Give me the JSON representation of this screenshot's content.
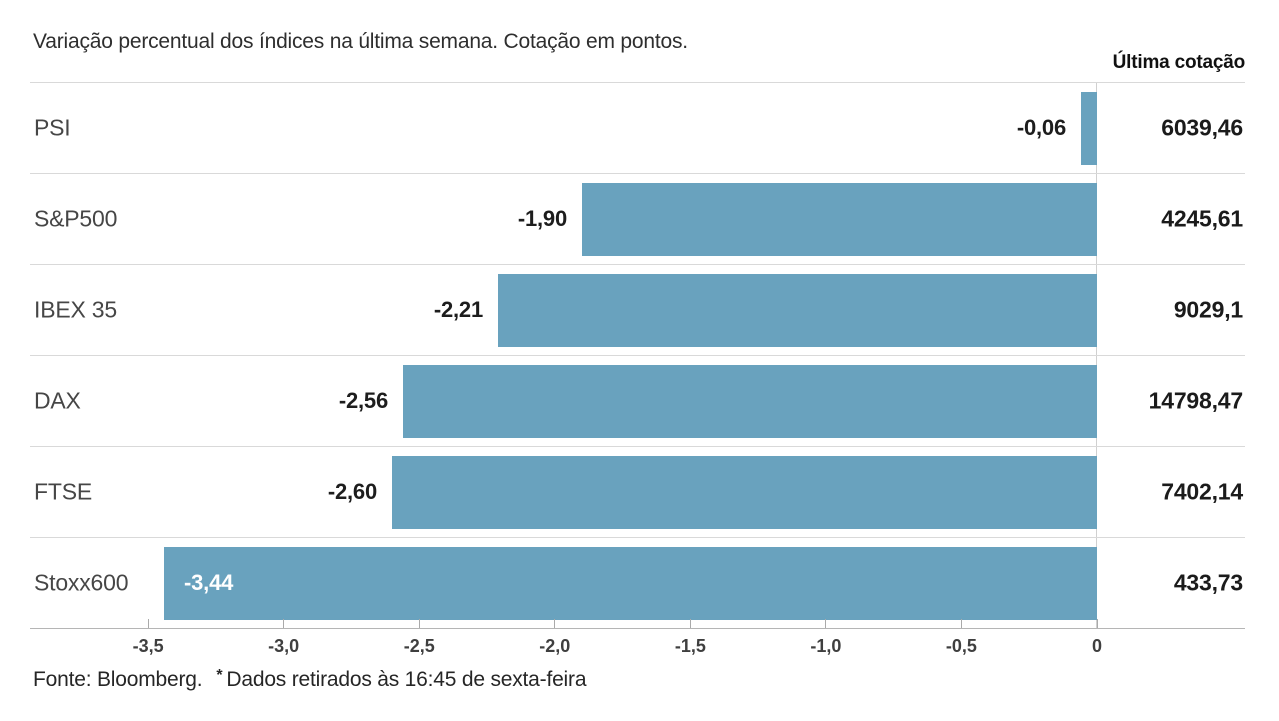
{
  "title": "Variação percentual dos índices na última semana. Cotação em pontos.",
  "last_quote_header": "Última cotação",
  "footer": {
    "source": "Fonte: Bloomberg.",
    "asterisk": "*",
    "note": "Dados retirados às 16:45 de sexta-feira"
  },
  "colors": {
    "bar": "#69a2be",
    "bar_label_inside": "#ffffff",
    "row_separator": "#d9d9d9",
    "axis_line": "#b5b5b5",
    "zero_gridline": "#d0d0d0",
    "value_text": "#1d1d1d",
    "label_text": "#464646"
  },
  "chart_data": {
    "type": "bar",
    "orientation": "horizontal",
    "title": "Variação percentual dos índices na última semana. Cotação em pontos.",
    "xlabel": "",
    "ylabel": "",
    "xlim": [
      -3.5,
      0
    ],
    "grid": false,
    "legend": "none",
    "value_column_header": "Última cotação",
    "x_ticks": [
      {
        "value": -3.5,
        "label": "-3,5"
      },
      {
        "value": -3.0,
        "label": "-3,0"
      },
      {
        "value": -2.5,
        "label": "-2,5"
      },
      {
        "value": -2.0,
        "label": "-2,0"
      },
      {
        "value": -1.5,
        "label": "-1,5"
      },
      {
        "value": -1.0,
        "label": "-1,0"
      },
      {
        "value": -0.5,
        "label": "-0,5"
      },
      {
        "value": 0,
        "label": "0"
      }
    ],
    "rows": [
      {
        "label": "PSI",
        "value": -0.06,
        "value_label": "-0,06",
        "quote": "6039,46",
        "label_inside": false
      },
      {
        "label": "S&P500",
        "value": -1.9,
        "value_label": "-1,90",
        "quote": "4245,61",
        "label_inside": false
      },
      {
        "label": "IBEX 35",
        "value": -2.21,
        "value_label": "-2,21",
        "quote": "9029,1",
        "label_inside": false
      },
      {
        "label": "DAX",
        "value": -2.56,
        "value_label": "-2,56",
        "quote": "14798,47",
        "label_inside": false
      },
      {
        "label": "FTSE",
        "value": -2.6,
        "value_label": "-2,60",
        "quote": "7402,14",
        "label_inside": false
      },
      {
        "label": "Stoxx600",
        "value": -3.44,
        "value_label": "-3,44",
        "quote": "433,73",
        "label_inside": true
      }
    ]
  }
}
